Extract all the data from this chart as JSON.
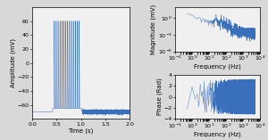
{
  "bg_color": "#d8d8d8",
  "plot_bg": "#f0f0f0",
  "line_color": "#3a6fbc",
  "fs": 10000,
  "duration": 2.0,
  "spike_start": 0.45,
  "spike_end": 1.0,
  "spike_count": 14,
  "spike_amplitude": 60,
  "resting": -70,
  "block_level": -65,
  "time_xlabel": "Time (s)",
  "time_ylabel": "Amplitude (mV)",
  "freq_xlabel": "Frequency (Hz)",
  "mag_ylabel": "Magnitude (mV)",
  "phase_ylabel": "Phase (Rad)",
  "xlim_time": [
    0,
    2
  ],
  "xlim_freq": [
    0.1,
    10000
  ],
  "ylim_time": [
    -80,
    80
  ],
  "ylim_mag": [
    1e-06,
    100.0
  ],
  "ylim_phase": [
    -4,
    4
  ],
  "tick_fontsize": 4.5,
  "label_fontsize": 5.0
}
